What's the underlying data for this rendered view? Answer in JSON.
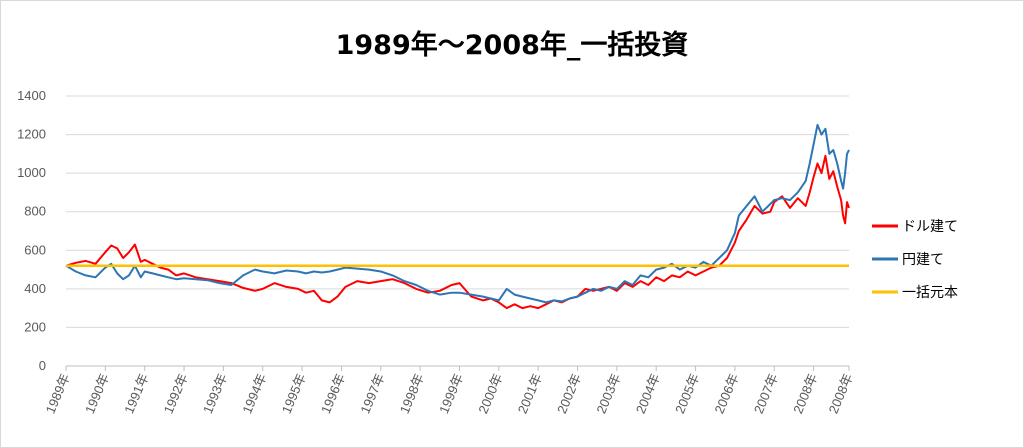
{
  "title": "1989年〜2008年_一括投資",
  "chart_data": {
    "type": "line",
    "title": "1989年〜2008年_一括投資",
    "xlabel": "",
    "ylabel": "",
    "ylim": [
      0,
      1400
    ],
    "yticks": [
      0,
      200,
      400,
      600,
      800,
      1000,
      1200,
      1400
    ],
    "xlim": [
      1989.0,
      2008.9
    ],
    "x_tick_labels": [
      "1989年",
      "1990年",
      "1991年",
      "1992年",
      "1993年",
      "1994年",
      "1995年",
      "1996年",
      "1997年",
      "1998年",
      "1999年",
      "2000年",
      "2001年",
      "2002年",
      "2003年",
      "2004年",
      "2005年",
      "2006年",
      "2007年",
      "2008年",
      "2008年"
    ],
    "x_tick_values": [
      1989.0,
      1990.0,
      1991.0,
      1992.0,
      1993.0,
      1994.0,
      1995.0,
      1996.0,
      1997.0,
      1998.0,
      1999.0,
      2000.0,
      2001.0,
      2002.0,
      2003.0,
      2004.0,
      2005.0,
      2006.0,
      2007.0,
      2008.0,
      2008.9
    ],
    "grid": true,
    "legend_position": "right",
    "series": [
      {
        "name": "ドル建て",
        "color": "#ff0000",
        "x": [
          1989.0,
          1989.25,
          1989.5,
          1989.75,
          1990.0,
          1990.15,
          1990.3,
          1990.45,
          1990.6,
          1990.75,
          1990.9,
          1991.0,
          1991.2,
          1991.4,
          1991.6,
          1991.8,
          1992.0,
          1992.3,
          1992.6,
          1992.9,
          1993.2,
          1993.5,
          1993.8,
          1994.0,
          1994.3,
          1994.6,
          1994.9,
          1995.1,
          1995.3,
          1995.5,
          1995.7,
          1995.9,
          1996.1,
          1996.4,
          1996.7,
          1997.0,
          1997.3,
          1997.6,
          1997.9,
          1998.2,
          1998.5,
          1998.8,
          1999.0,
          1999.3,
          1999.6,
          1999.8,
          2000.0,
          2000.2,
          2000.4,
          2000.6,
          2000.8,
          2001.0,
          2001.2,
          2001.4,
          2001.6,
          2001.8,
          2002.0,
          2002.2,
          2002.4,
          2002.6,
          2002.8,
          2003.0,
          2003.2,
          2003.4,
          2003.6,
          2003.8,
          2004.0,
          2004.2,
          2004.4,
          2004.6,
          2004.8,
          2005.0,
          2005.2,
          2005.4,
          2005.6,
          2005.8,
          2006.0,
          2006.1,
          2006.3,
          2006.5,
          2006.7,
          2006.9,
          2007.0,
          2007.2,
          2007.4,
          2007.6,
          2007.8,
          2007.9,
          2008.0,
          2008.1,
          2008.2,
          2008.3,
          2008.4,
          2008.5,
          2008.6,
          2008.7,
          2008.75,
          2008.8,
          2008.85,
          2008.9
        ],
        "values": [
          520,
          535,
          545,
          530,
          590,
          625,
          610,
          560,
          590,
          630,
          540,
          550,
          530,
          510,
          500,
          470,
          480,
          460,
          450,
          440,
          430,
          405,
          390,
          400,
          430,
          410,
          400,
          380,
          390,
          340,
          330,
          360,
          410,
          440,
          430,
          440,
          450,
          430,
          400,
          380,
          390,
          420,
          430,
          360,
          340,
          350,
          330,
          300,
          320,
          300,
          310,
          300,
          320,
          340,
          330,
          350,
          360,
          400,
          390,
          400,
          410,
          390,
          430,
          410,
          440,
          420,
          460,
          440,
          470,
          460,
          490,
          470,
          490,
          510,
          520,
          560,
          640,
          700,
          760,
          830,
          790,
          800,
          850,
          880,
          820,
          870,
          830,
          900,
          980,
          1050,
          1000,
          1090,
          970,
          1010,
          930,
          860,
          780,
          740,
          850,
          820
        ]
      },
      {
        "name": "円建て",
        "color": "#2e75b6",
        "x": [
          1989.0,
          1989.25,
          1989.5,
          1989.75,
          1990.0,
          1990.15,
          1990.3,
          1990.45,
          1990.6,
          1990.75,
          1990.9,
          1991.0,
          1991.2,
          1991.4,
          1991.6,
          1991.8,
          1992.0,
          1992.3,
          1992.6,
          1992.9,
          1993.2,
          1993.5,
          1993.8,
          1994.0,
          1994.3,
          1994.6,
          1994.9,
          1995.1,
          1995.3,
          1995.5,
          1995.7,
          1995.9,
          1996.1,
          1996.4,
          1996.7,
          1997.0,
          1997.3,
          1997.6,
          1997.9,
          1998.2,
          1998.5,
          1998.8,
          1999.0,
          1999.3,
          1999.6,
          1999.8,
          2000.0,
          2000.2,
          2000.4,
          2000.6,
          2000.8,
          2001.0,
          2001.2,
          2001.4,
          2001.6,
          2001.8,
          2002.0,
          2002.2,
          2002.4,
          2002.6,
          2002.8,
          2003.0,
          2003.2,
          2003.4,
          2003.6,
          2003.8,
          2004.0,
          2004.2,
          2004.4,
          2004.6,
          2004.8,
          2005.0,
          2005.2,
          2005.4,
          2005.6,
          2005.8,
          2006.0,
          2006.1,
          2006.3,
          2006.5,
          2006.7,
          2006.9,
          2007.0,
          2007.2,
          2007.4,
          2007.6,
          2007.8,
          2007.9,
          2008.0,
          2008.1,
          2008.2,
          2008.3,
          2008.4,
          2008.5,
          2008.6,
          2008.7,
          2008.75,
          2008.8,
          2008.85,
          2008.9
        ],
        "values": [
          520,
          490,
          470,
          460,
          510,
          530,
          480,
          450,
          470,
          520,
          460,
          490,
          480,
          470,
          460,
          450,
          455,
          450,
          445,
          430,
          420,
          470,
          500,
          490,
          480,
          495,
          490,
          480,
          490,
          485,
          490,
          500,
          510,
          505,
          500,
          490,
          470,
          440,
          420,
          390,
          370,
          380,
          380,
          370,
          360,
          350,
          340,
          400,
          370,
          360,
          350,
          340,
          330,
          340,
          335,
          350,
          360,
          380,
          400,
          390,
          410,
          400,
          440,
          420,
          470,
          460,
          500,
          510,
          530,
          500,
          520,
          510,
          540,
          520,
          560,
          600,
          690,
          780,
          830,
          880,
          800,
          840,
          860,
          870,
          860,
          900,
          960,
          1050,
          1150,
          1250,
          1200,
          1230,
          1100,
          1120,
          1050,
          960,
          920,
          1000,
          1100,
          1120
        ]
      },
      {
        "name": "一括元本",
        "color": "#ffc000",
        "x": [
          1989.0,
          2008.9
        ],
        "values": [
          520,
          520
        ]
      }
    ]
  }
}
